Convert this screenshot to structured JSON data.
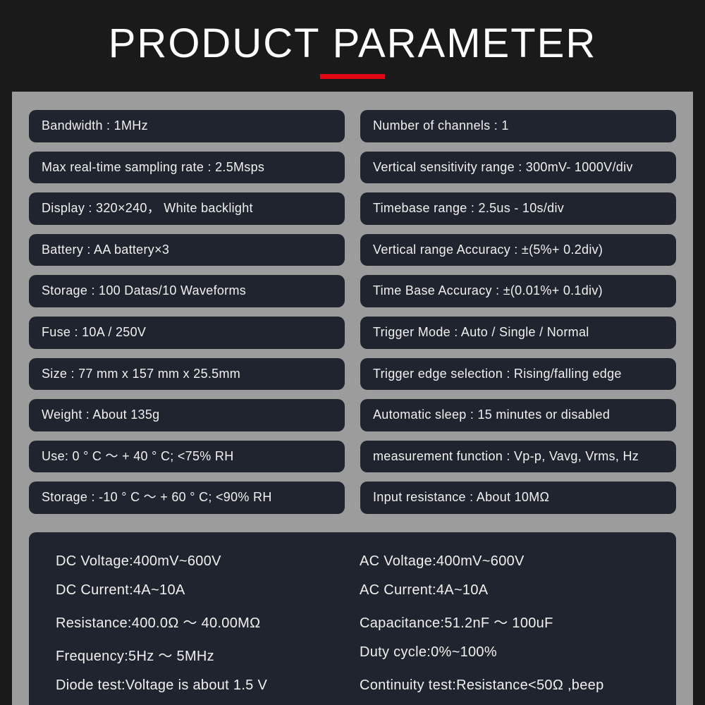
{
  "title": "PRODUCT PARAMETER",
  "colors": {
    "outer_bg": "#1a1a1a",
    "content_bg": "#9c9c9c",
    "pill_bg": "#20242e",
    "text": "#f0f0f0",
    "accent": "#e30613"
  },
  "left": [
    "Bandwidth : 1MHz",
    "Max real-time sampling rate : 2.5Msps",
    "Display : 320×240， White backlight",
    "Battery : AA battery×3",
    "Storage : 100 Datas/10 Waveforms",
    "Fuse : 10A / 250V",
    "Size : 77 mm x 157 mm x 25.5mm",
    "Weight : About 135g",
    "Use: 0 ° C ～ + 40 ° C; <75% RH",
    "Storage  : -10 ° C ～ + 60 ° C; <90% RH"
  ],
  "right": [
    "Number of channels : 1",
    "Vertical sensitivity range : 300mV- 1000V/div",
    "Timebase range : 2.5us - 10s/div",
    "Vertical range Accuracy : ±(5%+ 0.2div)",
    "Time Base Accuracy : ±(0.01%+ 0.1div)",
    "Trigger Mode : Auto / Single  / Normal",
    "Trigger edge selection : Rising/falling edge",
    "Automatic sleep : 15 minutes or disabled",
    "measurement function : Vp-p, Vavg, Vrms, Hz",
    "Input resistance : About 10MΩ"
  ],
  "bottom_left": [
    "DC Voltage:400mV~600V",
    "DC Current:4A~10A",
    "Resistance:400.0Ω ～ 40.00MΩ",
    "Frequency:5Hz ～ 5MHz",
    "Diode test:Voltage is about 1.5 V"
  ],
  "bottom_right": [
    "AC Voltage:400mV~600V",
    "AC Current:4A~10A",
    "Capacitance:51.2nF ～ 100uF",
    "Duty cycle:0%~100%",
    "Continuity test:Resistance<50Ω ,beep"
  ]
}
